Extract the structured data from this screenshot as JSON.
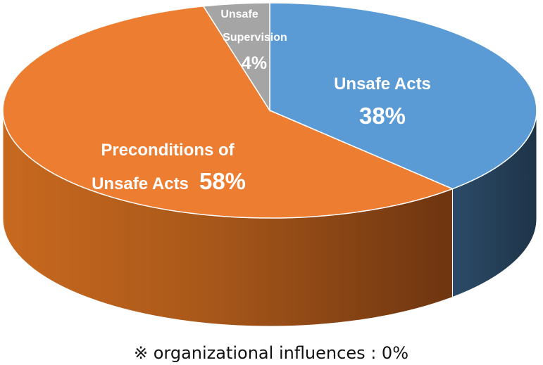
{
  "chart_data": {
    "type": "pie",
    "style": "3d",
    "title": "",
    "slices": [
      {
        "label": "Unsafe Acts",
        "value": 38,
        "value_label": "38%",
        "color": "#5b9bd5",
        "side_color": "#24425e"
      },
      {
        "label": "Preconditions of Unsafe Acts",
        "label_lines": [
          "Preconditions of",
          "Unsafe Acts"
        ],
        "value": 58,
        "value_label": "58%",
        "color": "#ed7d31",
        "side_color": "#b45a1c"
      },
      {
        "label": "Unsafe Supervision",
        "label_lines": [
          "Unsafe",
          "Supervision"
        ],
        "value": 4,
        "value_label": "4%",
        "color": "#a5a5a5",
        "side_color": "#6e6e6e"
      }
    ],
    "start_angle_deg": -90,
    "direction": "clockwise"
  },
  "footnote": "※ organizational influences : 0%"
}
